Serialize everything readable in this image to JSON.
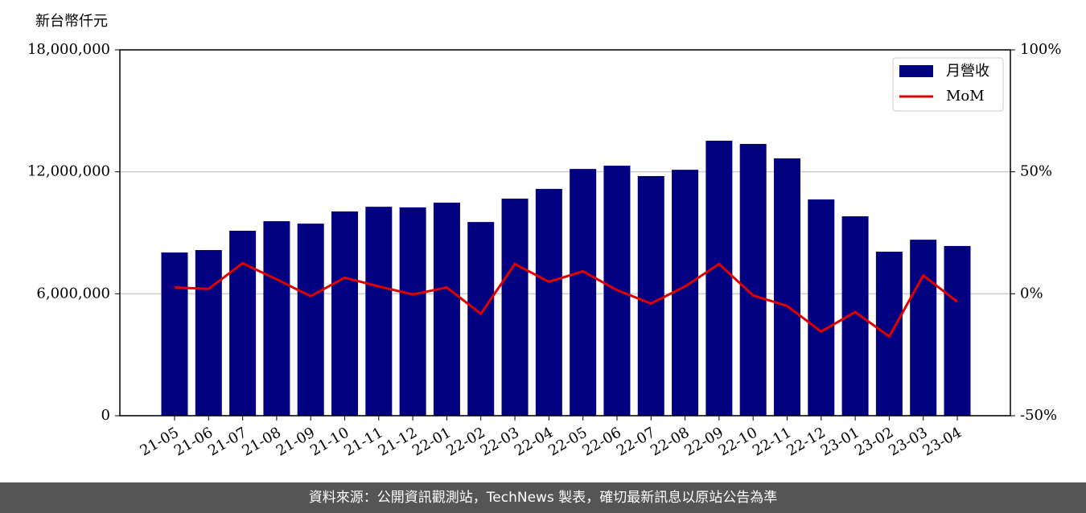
{
  "chart_data": {
    "type": "bar_line",
    "y_label": "新台幣仟元",
    "categories": [
      "21-05",
      "21-06",
      "21-07",
      "21-08",
      "21-09",
      "21-10",
      "21-11",
      "21-12",
      "22-01",
      "22-02",
      "22-03",
      "22-04",
      "22-05",
      "22-06",
      "22-07",
      "22-08",
      "22-09",
      "22-10",
      "22-11",
      "22-12",
      "23-01",
      "23-02",
      "23-03",
      "23-04"
    ],
    "series": [
      {
        "name": "月營收",
        "type": "bar",
        "color": "#000080",
        "values": [
          8030000,
          8150000,
          9100000,
          9570000,
          9450000,
          10050000,
          10280000,
          10250000,
          10480000,
          9530000,
          10680000,
          11160000,
          12140000,
          12300000,
          11790000,
          12100000,
          13530000,
          13370000,
          12660000,
          10640000,
          9810000,
          8070000,
          8660000,
          8350000
        ]
      },
      {
        "name": "MoM",
        "type": "line",
        "axis": "y2",
        "color": "#e00000",
        "values": [
          2.6,
          2.0,
          12.5,
          5.9,
          -1.0,
          6.6,
          3.0,
          -0.3,
          2.6,
          -8.2,
          12.2,
          4.9,
          9.2,
          1.5,
          -4.0,
          3.0,
          12.2,
          -0.7,
          -5.0,
          -15.5,
          -7.5,
          -17.5,
          7.5,
          -3.3
        ]
      }
    ],
    "ylim": [
      0,
      18000000
    ],
    "yticks": [
      0,
      {
        "value": 6000000,
        "label": "6,000,000"
      },
      {
        "value": 12000000,
        "label": "12,000,000"
      },
      {
        "value": 18000000,
        "label": "18,000,000"
      }
    ],
    "y2lim": [
      -50,
      100
    ],
    "y2ticks": [
      {
        "value": -50,
        "label": "-50%"
      },
      {
        "value": 0,
        "label": "0%"
      },
      {
        "value": 50,
        "label": "50%"
      },
      {
        "value": 100,
        "label": "100%"
      }
    ],
    "grid": true,
    "legend": "upper right",
    "footer": "資料來源：公開資訊觀測站，TechNews 製表，確切最新訊息以原站公告為準"
  }
}
